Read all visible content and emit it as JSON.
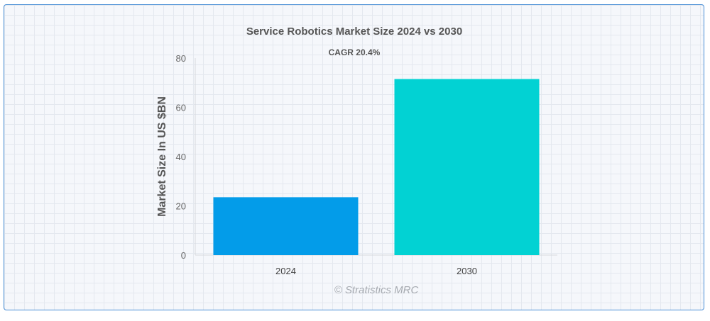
{
  "chart_data": {
    "type": "bar",
    "title": "Service Robotics Market Size 2024 vs 2030",
    "annotation": "CAGR 20.4%",
    "ylabel": "Market Size In US $BN",
    "xlabel": "",
    "categories": [
      "2024",
      "2030"
    ],
    "values": [
      23.5,
      71.5
    ],
    "bar_colors": [
      "#039ce9",
      "#02d2d3"
    ],
    "ylim": [
      0,
      80
    ],
    "yticks": [
      0,
      20,
      40,
      60,
      80
    ],
    "grid": false,
    "legend": "none",
    "credit": "© Stratistics MRC"
  }
}
